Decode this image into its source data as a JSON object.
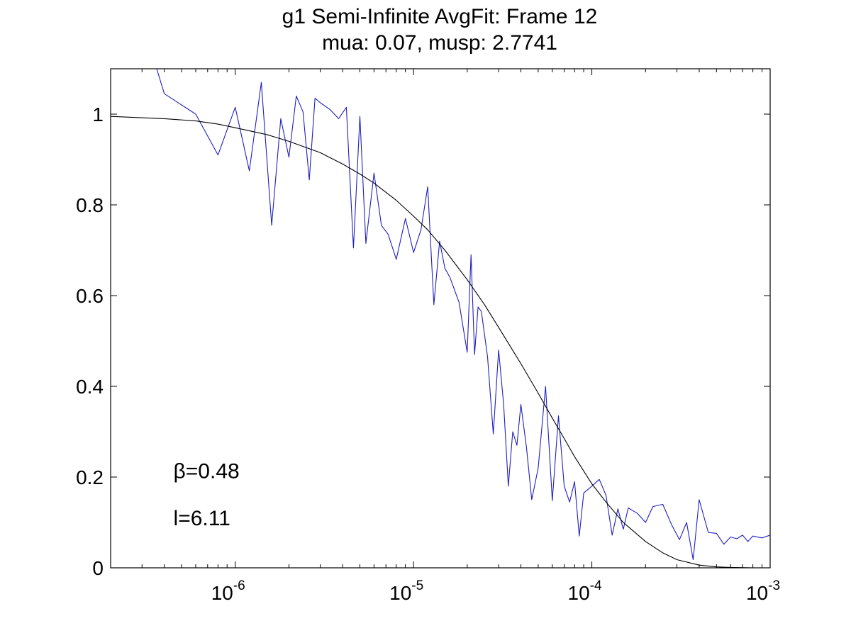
{
  "chart_data": {
    "type": "line",
    "title": "g1 Semi-Infinite AvgFit: Frame 12",
    "subtitle": "mua: 0.07, musp: 2.7741",
    "xlabel": "",
    "ylabel": "",
    "xscale": "log",
    "xlim": [
      2e-07,
      0.001
    ],
    "ylim": [
      0,
      1.1
    ],
    "grid": false,
    "x_ticks": [
      {
        "value": 1e-06,
        "base": "10",
        "exp": "-6"
      },
      {
        "value": 1e-05,
        "base": "10",
        "exp": "-5"
      },
      {
        "value": 0.0001,
        "base": "10",
        "exp": "-4"
      },
      {
        "value": 0.001,
        "base": "10",
        "exp": "-3"
      }
    ],
    "y_ticks": [
      {
        "value": 0,
        "label": "0"
      },
      {
        "value": 0.2,
        "label": "0.2"
      },
      {
        "value": 0.4,
        "label": "0.4"
      },
      {
        "value": 0.6,
        "label": "0.6"
      },
      {
        "value": 0.8,
        "label": "0.8"
      },
      {
        "value": 1,
        "label": "1"
      }
    ],
    "annotations": [
      {
        "text": "β=0.48",
        "x": 4.5e-07,
        "y": 0.198
      },
      {
        "text": "l=6.11",
        "x": 4.5e-07,
        "y": 0.094
      }
    ],
    "series": [
      {
        "color": "#1f1fbf",
        "x": [
          3.5e-07,
          4e-07,
          6e-07,
          8e-07,
          1e-06,
          1.2e-06,
          1.4e-06,
          1.6e-06,
          1.8e-06,
          2e-06,
          2.2e-06,
          2.4e-06,
          2.6e-06,
          2.8e-06,
          3e-06,
          3.4e-06,
          3.8e-06,
          4.2e-06,
          4.6e-06,
          5e-06,
          5.4e-06,
          6e-06,
          6.6e-06,
          7.2e-06,
          8e-06,
          9e-06,
          1e-05,
          1.1e-05,
          1.2e-05,
          1.3e-05,
          1.4e-05,
          1.5e-05,
          1.6e-05,
          1.8e-05,
          2e-05,
          2.1e-05,
          2.2e-05,
          2.3e-05,
          2.4e-05,
          2.6e-05,
          2.8e-05,
          3e-05,
          3.2e-05,
          3.4e-05,
          3.6e-05,
          3.8e-05,
          4e-05,
          4.3e-05,
          4.6e-05,
          5e-05,
          5.5e-05,
          6e-05,
          6.5e-05,
          7e-05,
          7.5e-05,
          8e-05,
          8.5e-05,
          9e-05,
          0.0001,
          0.00011,
          0.00012,
          0.00013,
          0.00014,
          0.00015,
          0.00016,
          0.00018,
          0.0002,
          0.00022,
          0.00025,
          0.00028,
          0.00031,
          0.00034,
          0.00037,
          0.0004,
          0.00045,
          0.0005,
          0.00055,
          0.0006,
          0.00065,
          0.0007,
          0.00075,
          0.0008,
          0.0009,
          0.001
        ],
        "y": [
          1.12,
          1.045,
          1.0,
          0.91,
          1.015,
          0.875,
          1.07,
          0.755,
          0.99,
          0.905,
          1.04,
          1.005,
          0.855,
          1.035,
          1.025,
          1.01,
          0.99,
          1.015,
          0.705,
          0.995,
          0.715,
          0.87,
          0.755,
          0.735,
          0.68,
          0.77,
          0.695,
          0.745,
          0.84,
          0.58,
          0.72,
          0.66,
          0.64,
          0.585,
          0.475,
          0.69,
          0.47,
          0.575,
          0.565,
          0.465,
          0.295,
          0.48,
          0.36,
          0.18,
          0.3,
          0.27,
          0.36,
          0.265,
          0.15,
          0.22,
          0.4,
          0.148,
          0.335,
          0.18,
          0.145,
          0.19,
          0.07,
          0.165,
          0.18,
          0.195,
          0.16,
          0.072,
          0.13,
          0.085,
          0.132,
          0.12,
          0.1,
          0.135,
          0.14,
          0.095,
          0.062,
          0.1,
          0.018,
          0.15,
          0.078,
          0.076,
          0.052,
          0.068,
          0.064,
          0.072,
          0.058,
          0.07,
          0.066,
          0.072
        ]
      },
      {
        "color": "#000000",
        "model": {
          "form": "1 - b + b*(g1)^2 approx smooth decay",
          "beta": 0.48
        },
        "x": [
          2e-07,
          4e-07,
          6e-07,
          8e-07,
          1e-06,
          1.5e-06,
          2e-06,
          3e-06,
          4e-06,
          5e-06,
          6e-06,
          8e-06,
          1e-05,
          1.2e-05,
          1.5e-05,
          2e-05,
          2.5e-05,
          3e-05,
          4e-05,
          5e-05,
          6e-05,
          7e-05,
          8e-05,
          0.0001,
          0.00012,
          0.00015,
          0.0002,
          0.00025,
          0.0003,
          0.0004,
          0.0005,
          0.0006,
          0.0008,
          0.001
        ],
        "y": [
          0.995,
          0.99,
          0.985,
          0.978,
          0.97,
          0.955,
          0.94,
          0.915,
          0.89,
          0.868,
          0.848,
          0.81,
          0.775,
          0.745,
          0.7,
          0.635,
          0.58,
          0.53,
          0.45,
          0.385,
          0.33,
          0.285,
          0.245,
          0.185,
          0.145,
          0.1,
          0.058,
          0.033,
          0.018,
          0.006,
          0.002,
          0.001,
          0.0,
          0.0
        ]
      }
    ]
  }
}
